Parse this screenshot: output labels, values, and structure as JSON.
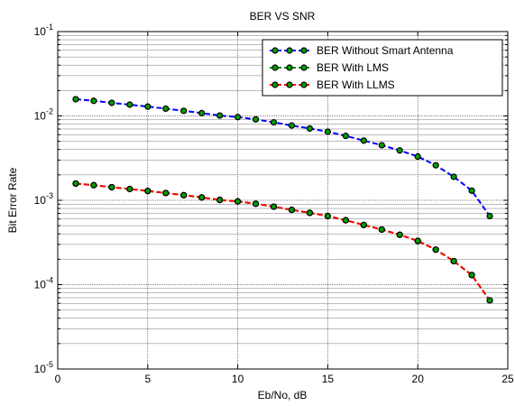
{
  "chart_data": {
    "type": "line",
    "title": "BER VS SNR",
    "xlabel": "Eb/No, dB",
    "ylabel": "Bit Error Rate",
    "xlim": [
      0,
      25
    ],
    "ylim": [
      1e-05,
      0.1
    ],
    "yscale": "log",
    "grid": true,
    "legend_position": "top-right",
    "xticks": [
      "0",
      "5",
      "10",
      "15",
      "20",
      "25"
    ],
    "yticks": [
      {
        "base": "10",
        "exp": "-1"
      },
      {
        "base": "10",
        "exp": "-2"
      },
      {
        "base": "10",
        "exp": "-3"
      },
      {
        "base": "10",
        "exp": "-4"
      },
      {
        "base": "10",
        "exp": "-5"
      }
    ],
    "x": [
      1,
      2,
      3,
      4,
      5,
      6,
      7,
      8,
      9,
      10,
      11,
      12,
      13,
      14,
      15,
      16,
      17,
      18,
      19,
      20,
      21,
      22,
      23,
      24
    ],
    "series": [
      {
        "name": "BER Without Smart Antenna",
        "color": "#0000ff",
        "marker_color": "#00a000",
        "values": [
          0.0158,
          0.0151,
          0.0143,
          0.0136,
          0.0129,
          0.0122,
          0.0115,
          0.0108,
          0.0101,
          0.0097,
          0.0091,
          0.0084,
          0.0077,
          0.0071,
          0.0065,
          0.0058,
          0.0051,
          0.0045,
          0.0039,
          0.0033,
          0.0026,
          0.0019,
          0.0013,
          0.00065
        ]
      },
      {
        "name": "BER With LMS",
        "color": "#008000",
        "marker_color": "#00a000",
        "values": [
          0.00158,
          0.00151,
          0.00143,
          0.00136,
          0.00129,
          0.00122,
          0.00115,
          0.00108,
          0.00101,
          0.00097,
          0.00091,
          0.00084,
          0.00077,
          0.00071,
          0.00065,
          0.00058,
          0.00051,
          0.00045,
          0.00039,
          0.00033,
          0.00026,
          0.00019,
          0.00013,
          6.5e-05
        ]
      },
      {
        "name": "BER With LLMS",
        "color": "#ff0000",
        "marker_color": "#00a000",
        "values": [
          0.00158,
          0.00151,
          0.00143,
          0.00136,
          0.00129,
          0.00122,
          0.00115,
          0.00108,
          0.00101,
          0.00097,
          0.00091,
          0.00084,
          0.00077,
          0.00071,
          0.00065,
          0.00058,
          0.00051,
          0.00045,
          0.00039,
          0.00033,
          0.00026,
          0.00019,
          0.00013,
          6.5e-05
        ]
      }
    ]
  }
}
